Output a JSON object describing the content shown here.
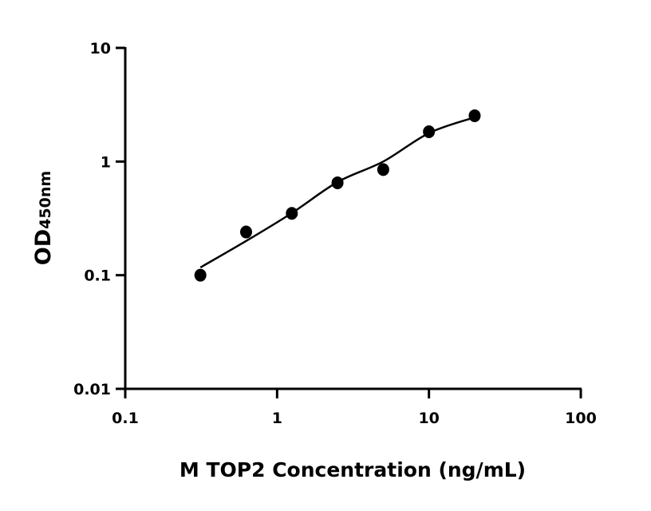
{
  "chart_data": {
    "type": "scatter",
    "title": "",
    "xlabel": "M TOP2 Concentration (ng/mL)",
    "ylabel": "OD",
    "ylabel_subscript": "450nm",
    "xscale": "log",
    "yscale": "log",
    "xlim": [
      0.1,
      100
    ],
    "ylim": [
      0.01,
      10
    ],
    "xticks": [
      "0.1",
      "1",
      "10",
      "100"
    ],
    "yticks": [
      "0.01",
      "0.1",
      "1",
      "10"
    ],
    "grid": false,
    "colors": {
      "points": "#000000",
      "curve": "#000000"
    },
    "series": [
      {
        "type": "scatter",
        "x": [
          0.3125,
          0.625,
          1.25,
          2.5,
          5,
          10,
          20
        ],
        "y": [
          0.1,
          0.24,
          0.35,
          0.65,
          0.85,
          1.83,
          2.53
        ]
      },
      {
        "type": "fitted-curve",
        "x": [
          0.3125,
          0.625,
          1.25,
          2.5,
          5,
          10,
          20
        ],
        "y": [
          0.117,
          0.2,
          0.352,
          0.66,
          1.0,
          1.78,
          2.45
        ]
      }
    ]
  }
}
